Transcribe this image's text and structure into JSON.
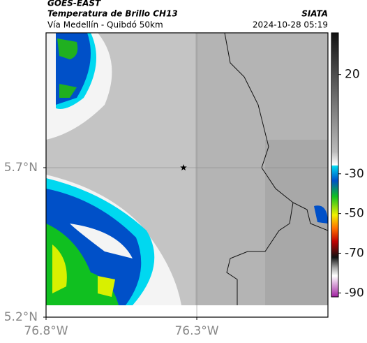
{
  "header": {
    "source": "GOES-EAST",
    "title": "Temperatura de Brillo CH13",
    "subtitle": "Vía Medellín - Quibdó 50km",
    "credit": "SIATA",
    "datetime": "2024-10-28 05:19"
  },
  "map": {
    "xlim": [
      -76.8,
      -75.865
    ],
    "ylim": [
      5.2,
      6.151
    ],
    "xticks": [
      {
        "value": -76.8,
        "label": "76.8°W"
      },
      {
        "value": -76.3,
        "label": "76.3°W"
      }
    ],
    "yticks": [
      {
        "value": 5.2,
        "label": "5.2°N"
      },
      {
        "value": 5.7,
        "label": "5.7°N"
      }
    ],
    "grid": true,
    "marker": {
      "lon": -76.344,
      "lat": 5.7
    }
  },
  "colorbar": {
    "lim": [
      -92,
      41
    ],
    "ticks": [
      20,
      -30,
      -50,
      -70,
      -90
    ]
  }
}
